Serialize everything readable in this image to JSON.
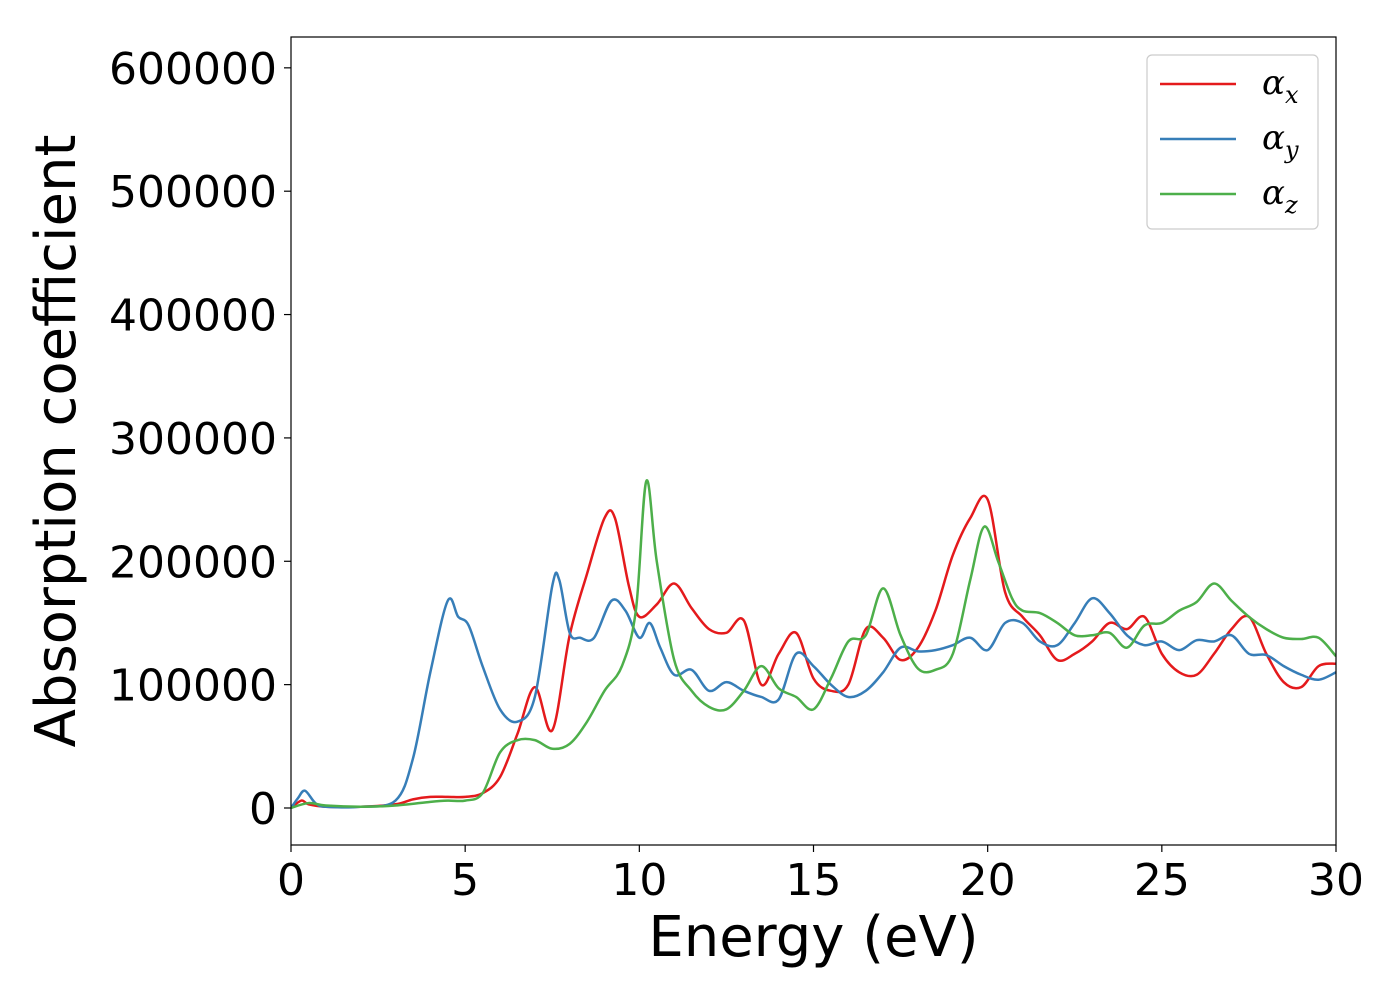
{
  "chart_data": {
    "type": "line",
    "xlabel": "Energy (eV)",
    "ylabel": "Absorption coefficient",
    "xlim": [
      0,
      30
    ],
    "ylim": [
      -30000,
      625000
    ],
    "xticks": [
      0,
      5,
      10,
      15,
      20,
      25,
      30
    ],
    "xtick_labels": [
      "0",
      "5",
      "10",
      "15",
      "20",
      "25",
      "30"
    ],
    "yticks": [
      0,
      100000,
      200000,
      300000,
      400000,
      500000,
      600000
    ],
    "ytick_labels": [
      "0",
      "100000",
      "200000",
      "300000",
      "400000",
      "500000",
      "600000"
    ],
    "grid": false,
    "legend_position": "top-right",
    "series": [
      {
        "name": "α_x",
        "label_base": "α",
        "label_sub": "x",
        "color": "#e41a1c",
        "x": [
          0,
          0.3,
          0.5,
          1,
          2,
          3,
          3.5,
          4,
          4.5,
          5,
          5.5,
          6,
          6.5,
          7,
          7.5,
          8,
          8.5,
          9,
          9.3,
          9.7,
          10,
          10.5,
          11,
          11.5,
          12,
          12.5,
          13,
          13.5,
          14,
          14.5,
          15,
          15.5,
          16,
          16.5,
          17,
          17.5,
          18,
          18.5,
          19,
          19.5,
          20,
          20.5,
          21,
          21.5,
          22,
          22.5,
          23,
          23.5,
          24,
          24.5,
          25,
          25.5,
          26,
          26.5,
          27,
          27.5,
          28,
          28.5,
          29,
          29.5,
          30
        ],
        "y": [
          0,
          6000,
          3000,
          1000,
          1000,
          3000,
          7000,
          9000,
          9000,
          9000,
          12000,
          25000,
          60000,
          98000,
          63000,
          140000,
          190000,
          235000,
          235000,
          180000,
          155000,
          165000,
          182000,
          162000,
          145000,
          142000,
          152000,
          100000,
          125000,
          142000,
          105000,
          95000,
          100000,
          145000,
          138000,
          120000,
          130000,
          160000,
          205000,
          235000,
          250000,
          175000,
          155000,
          140000,
          120000,
          125000,
          135000,
          150000,
          145000,
          155000,
          125000,
          110000,
          108000,
          125000,
          145000,
          155000,
          125000,
          102000,
          98000,
          115000,
          117000
        ]
      },
      {
        "name": "α_y",
        "label_base": "α",
        "label_sub": "y",
        "color": "#377eb8",
        "x": [
          0,
          0.2,
          0.4,
          0.7,
          1,
          2,
          3,
          3.5,
          4,
          4.5,
          4.8,
          5.1,
          5.5,
          6,
          6.5,
          7,
          7.5,
          7.7,
          8,
          8.3,
          8.7,
          9.2,
          9.6,
          10,
          10.3,
          10.6,
          11,
          11.5,
          12,
          12.5,
          13,
          13.5,
          14,
          14.5,
          15,
          15.5,
          16,
          16.5,
          17,
          17.5,
          18,
          18.5,
          19,
          19.5,
          20,
          20.5,
          21,
          21.5,
          22,
          22.5,
          23,
          23.5,
          24,
          24.5,
          25,
          25.5,
          26,
          26.5,
          27,
          27.5,
          28,
          28.5,
          29,
          29.5,
          30
        ],
        "y": [
          0,
          8000,
          14000,
          4000,
          1000,
          1000,
          6000,
          40000,
          110000,
          168000,
          155000,
          148000,
          115000,
          80000,
          70000,
          90000,
          180000,
          185000,
          142000,
          138000,
          138000,
          168000,
          160000,
          138000,
          150000,
          130000,
          108000,
          112000,
          95000,
          102000,
          95000,
          90000,
          88000,
          125000,
          115000,
          100000,
          90000,
          95000,
          110000,
          130000,
          127000,
          128000,
          132000,
          138000,
          128000,
          150000,
          150000,
          135000,
          132000,
          150000,
          170000,
          158000,
          140000,
          132000,
          135000,
          128000,
          136000,
          135000,
          140000,
          125000,
          124000,
          115000,
          108000,
          104000,
          110000
        ]
      },
      {
        "name": "α_z",
        "label_base": "α",
        "label_sub": "z",
        "color": "#4daf4a",
        "x": [
          0,
          0.5,
          1,
          2,
          3,
          4,
          4.5,
          5,
          5.5,
          6,
          6.5,
          7,
          7.5,
          8,
          8.5,
          9,
          9.5,
          9.9,
          10.2,
          10.5,
          11,
          11.5,
          12,
          12.5,
          13,
          13.5,
          14,
          14.5,
          15,
          15.5,
          16,
          16.5,
          17,
          17.5,
          18,
          18.5,
          19,
          19.5,
          19.9,
          20.3,
          20.7,
          21,
          21.5,
          22,
          22.5,
          23,
          23.5,
          24,
          24.5,
          25,
          25.5,
          26,
          26.5,
          27,
          27.5,
          28,
          28.5,
          29,
          29.5,
          30
        ],
        "y": [
          0,
          4000,
          2000,
          1000,
          2000,
          5000,
          6000,
          6000,
          12000,
          45000,
          55000,
          55000,
          48000,
          52000,
          70000,
          95000,
          115000,
          160000,
          265000,
          200000,
          120000,
          95000,
          82000,
          80000,
          95000,
          115000,
          97000,
          90000,
          80000,
          105000,
          135000,
          140000,
          178000,
          140000,
          113000,
          112000,
          125000,
          185000,
          228000,
          200000,
          170000,
          160000,
          158000,
          150000,
          140000,
          140000,
          142000,
          130000,
          148000,
          150000,
          160000,
          167000,
          182000,
          168000,
          155000,
          145000,
          138000,
          137000,
          138000,
          123000
        ]
      }
    ]
  }
}
